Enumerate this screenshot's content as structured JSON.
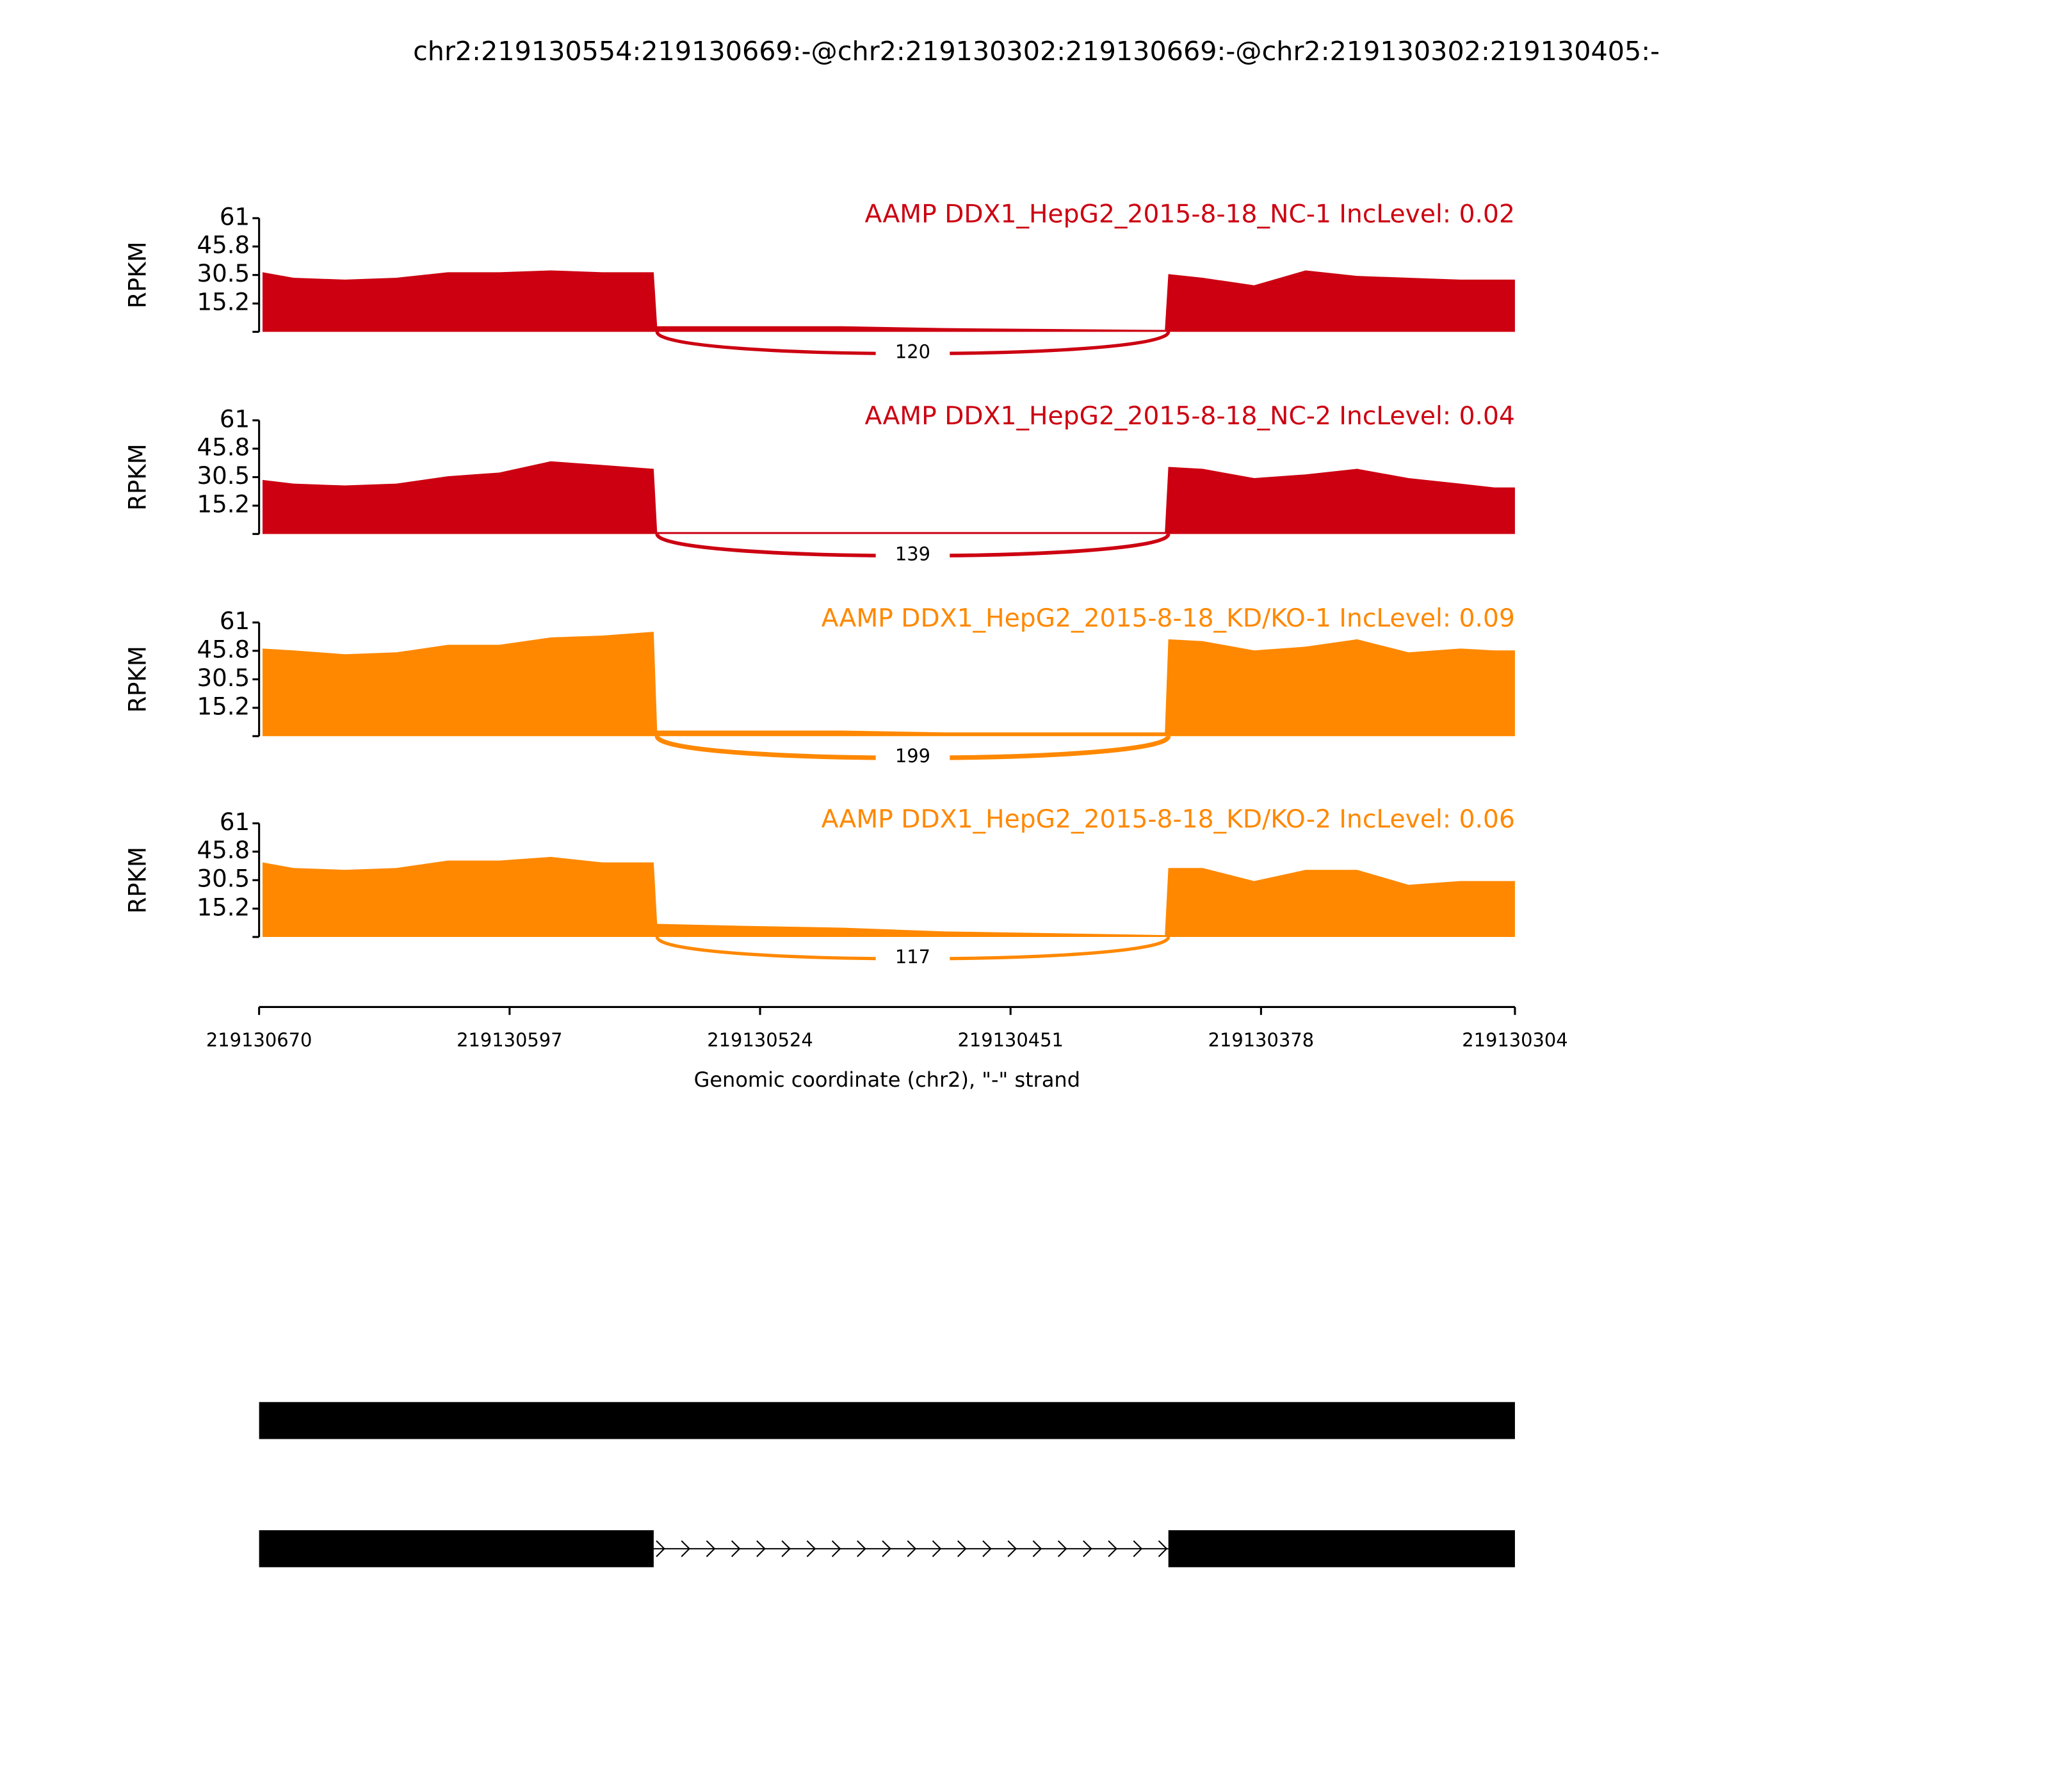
{
  "chart_data": {
    "type": "sashimi",
    "title": "chr2:219130554:219130669:-@chr2:219130302:219130669:-@chr2:219130302:219130405:-",
    "ylabel": "RPKM",
    "xlabel": "Genomic coordinate (chr2), \"-\" strand",
    "xlim": [
      219130670,
      219130304
    ],
    "xticks": [
      219130670,
      219130597,
      219130524,
      219130451,
      219130378,
      219130304
    ],
    "ylim": [
      0,
      61
    ],
    "yticks": [
      15.2,
      30.5,
      45.8,
      61
    ],
    "x": [
      219130669,
      219130660,
      219130645,
      219130630,
      219130615,
      219130600,
      219130585,
      219130570,
      219130555,
      219130554,
      219130530,
      219130500,
      219130470,
      219130406,
      219130405,
      219130395,
      219130380,
      219130365,
      219130350,
      219130335,
      219130320,
      219130310,
      219130304
    ],
    "series": [
      {
        "name": "AAMP DDX1_HepG2_2015-8-18_NC-1 IncLevel: 0.02",
        "color": "#cc0011",
        "values": [
          32,
          29,
          28,
          29,
          32,
          32,
          33,
          32,
          32,
          3,
          3,
          3,
          2,
          1,
          31,
          29,
          25,
          33,
          30,
          29,
          28,
          28,
          28
        ],
        "junction": {
          "start": 219130554,
          "end": 219130405,
          "count": 120
        }
      },
      {
        "name": "AAMP DDX1_HepG2_2015-8-18_NC-2 IncLevel: 0.04",
        "color": "#cc0011",
        "values": [
          29,
          27,
          26,
          27,
          31,
          33,
          39,
          37,
          35,
          1,
          1,
          1,
          1,
          1,
          36,
          35,
          30,
          32,
          35,
          30,
          27,
          25,
          25
        ],
        "junction": {
          "start": 219130554,
          "end": 219130405,
          "count": 139
        }
      },
      {
        "name": "AAMP DDX1_HepG2_2015-8-18_KD/KO-1 IncLevel: 0.09",
        "color": "#ff8800",
        "values": [
          47,
          46,
          44,
          45,
          49,
          49,
          53,
          54,
          56,
          3,
          3,
          3,
          2,
          2,
          52,
          51,
          46,
          48,
          52,
          45,
          47,
          46,
          46
        ],
        "junction": {
          "start": 219130554,
          "end": 219130405,
          "count": 199
        }
      },
      {
        "name": "AAMP DDX1_HepG2_2015-8-18_KD/KO-2 IncLevel: 0.06",
        "color": "#ff8800",
        "values": [
          40,
          37,
          36,
          37,
          41,
          41,
          43,
          40,
          40,
          7,
          6,
          5,
          3,
          1,
          37,
          37,
          30,
          36,
          36,
          28,
          30,
          30,
          30
        ],
        "junction": {
          "start": 219130554,
          "end": 219130405,
          "count": 117
        }
      }
    ]
  },
  "gene_models": [
    {
      "exons": [
        [
          219130670,
          219130304
        ]
      ]
    },
    {
      "exons": [
        [
          219130670,
          219130555
        ],
        [
          219130405,
          219130304
        ]
      ]
    }
  ]
}
